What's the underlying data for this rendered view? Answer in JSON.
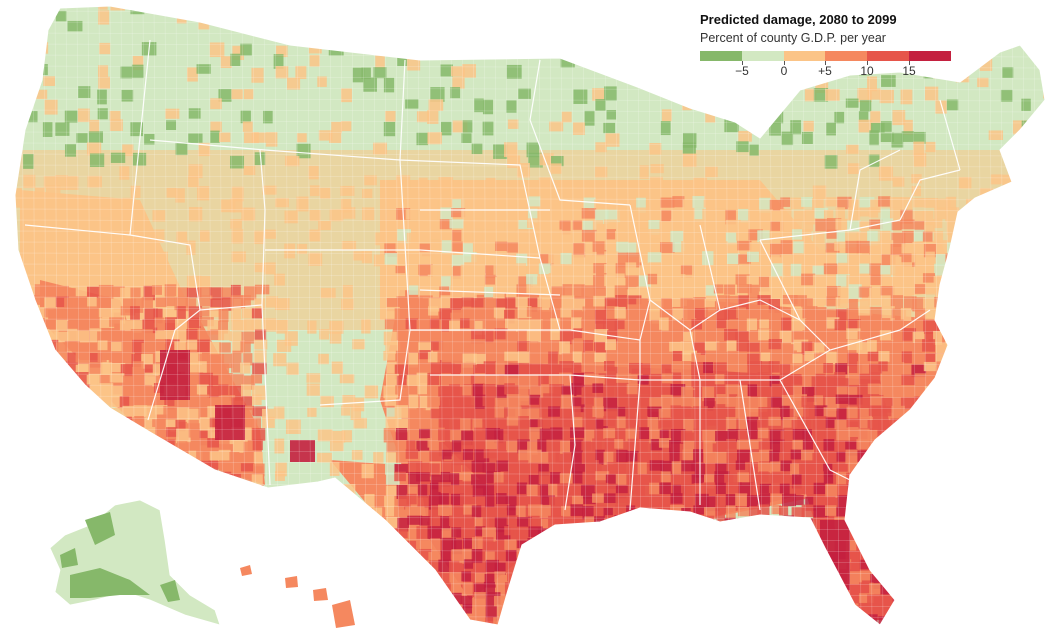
{
  "legend": {
    "title": "Predicted damage, 2080 to 2099",
    "subtitle": "Percent of county G.D.P. per year",
    "ticks": [
      "−5",
      "0",
      "+5",
      "10",
      "15"
    ],
    "colors": [
      "#86b86a",
      "#d2e8c2",
      "#fbc487",
      "#f5885f",
      "#e6554a",
      "#c4203f"
    ]
  },
  "map": {
    "region": "Contiguous United States, Alaska and Hawaii (county-level choropleth)",
    "outline_color": "#ffffff",
    "state_border_color": "#ffffff"
  }
}
